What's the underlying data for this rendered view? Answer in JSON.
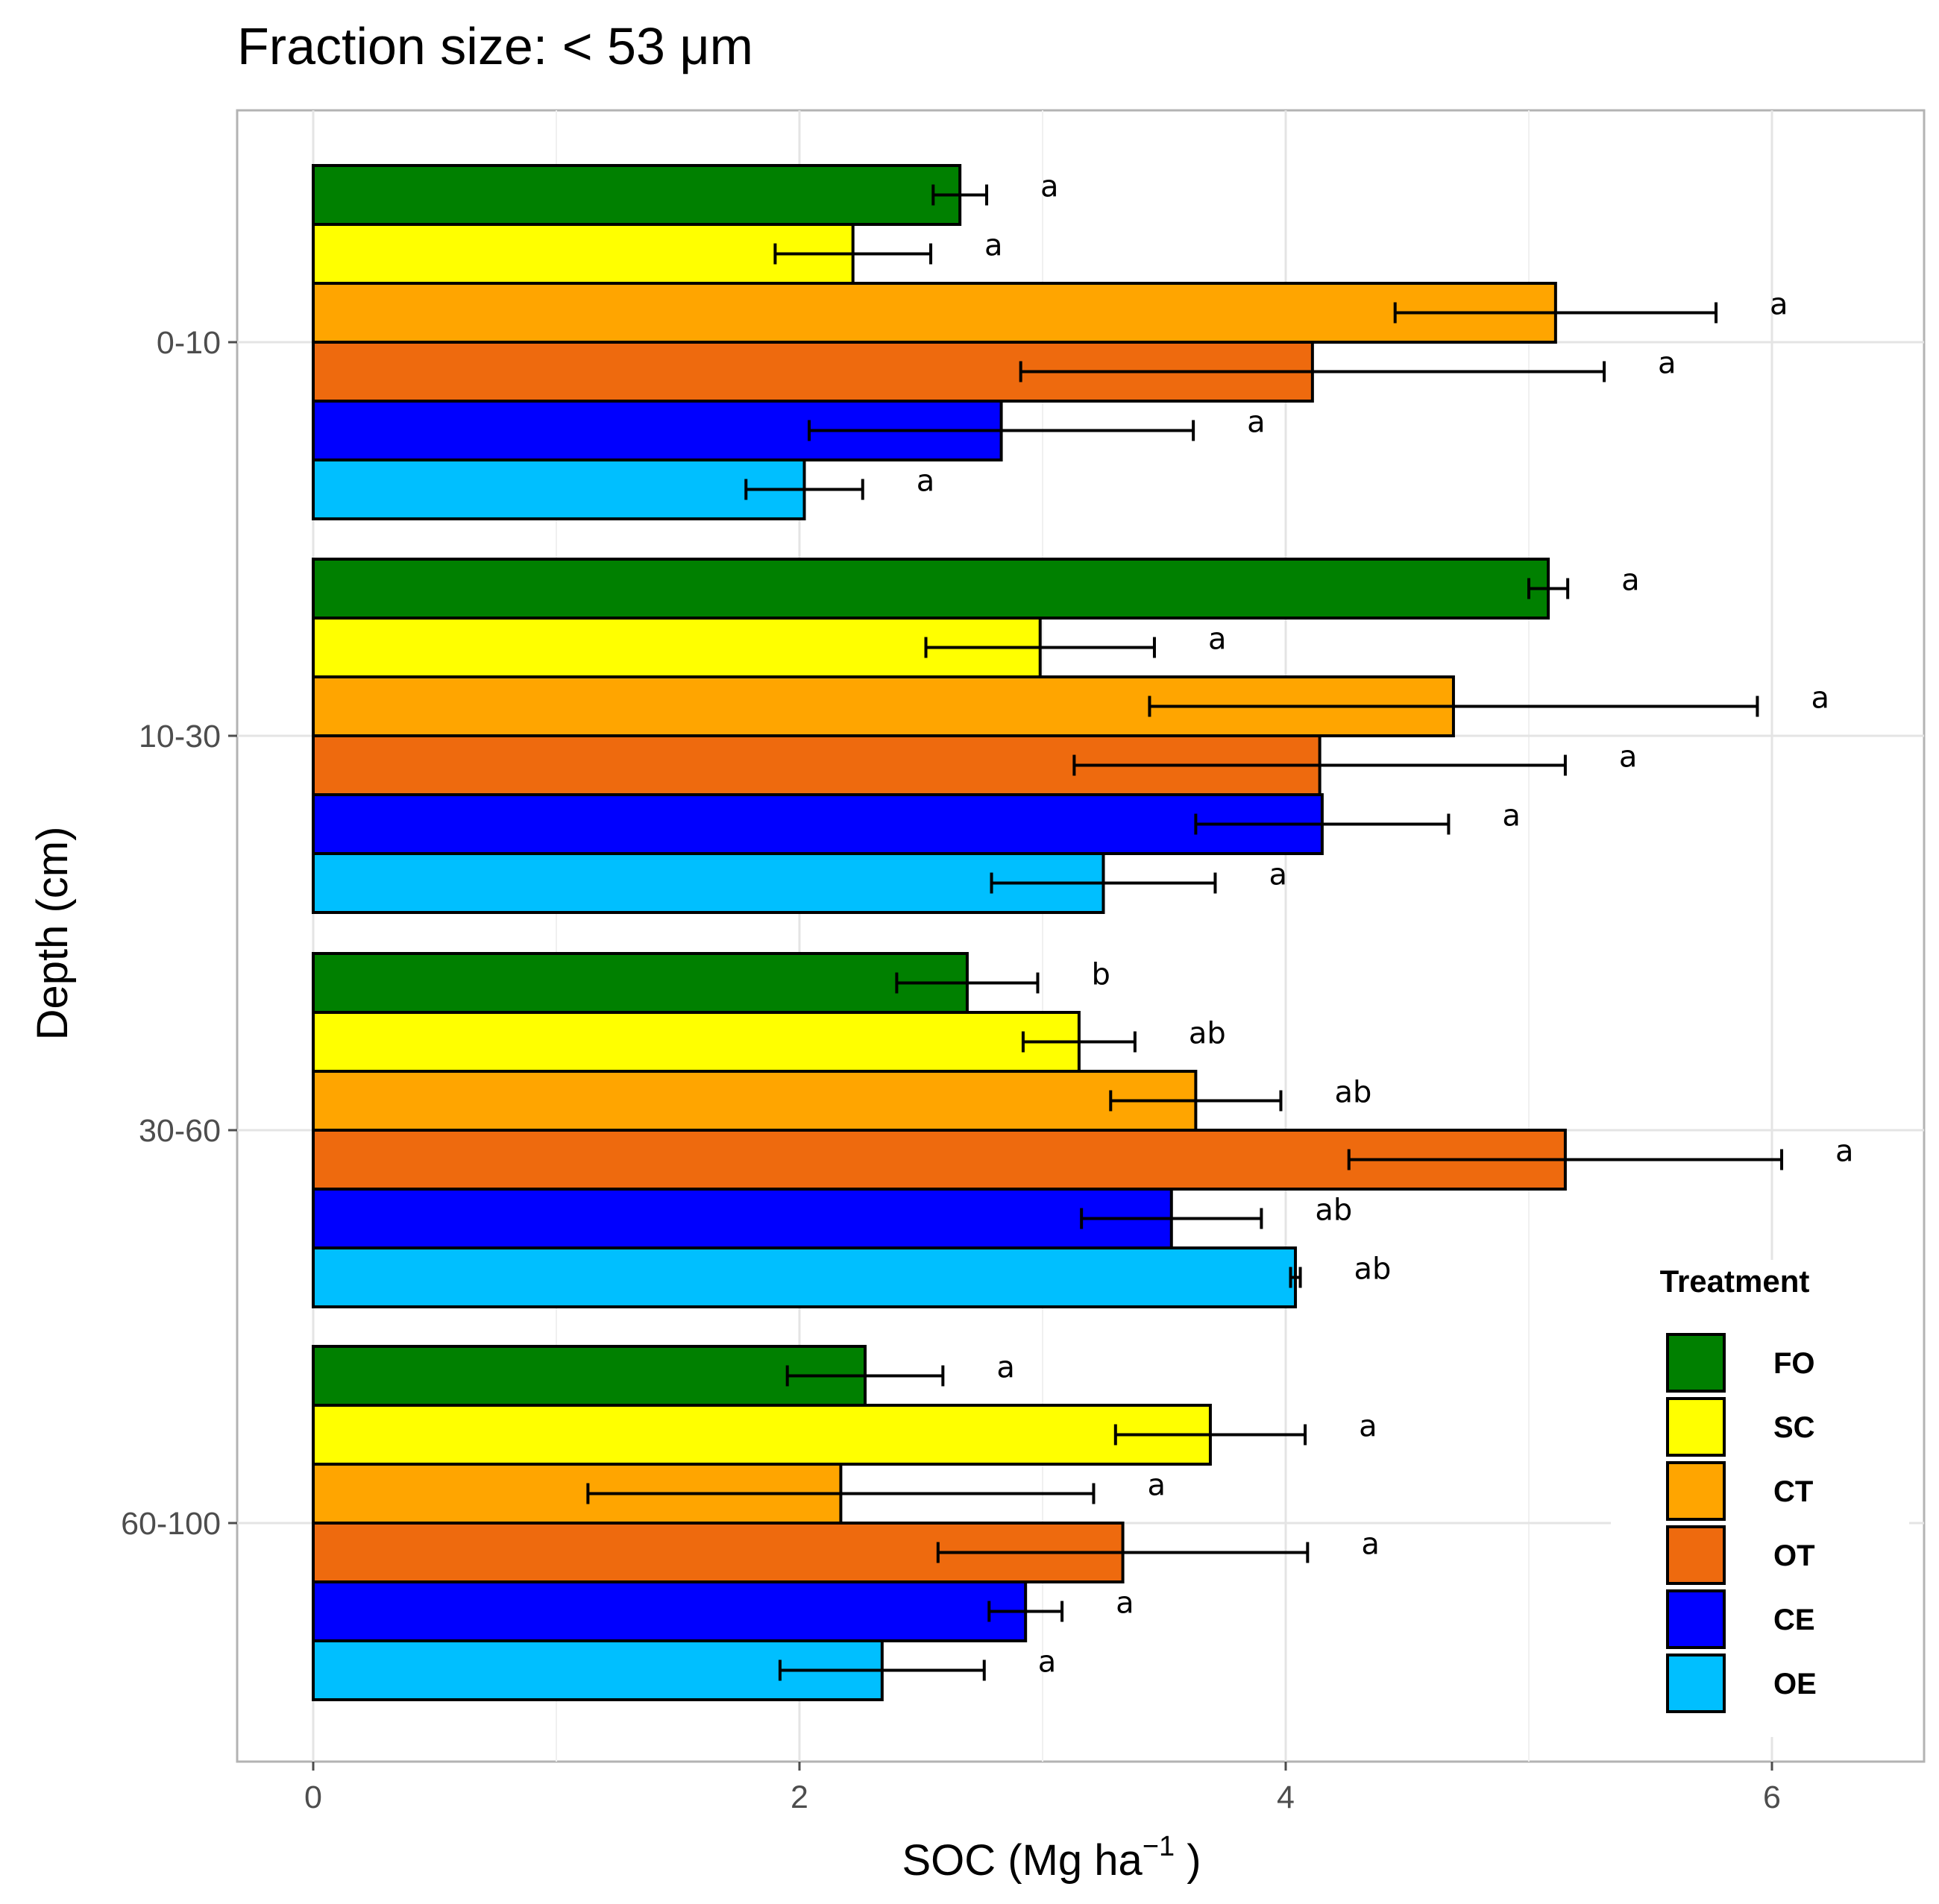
{
  "chart_data": {
    "type": "bar",
    "orientation": "horizontal",
    "title": "Fraction size: < 53 μm",
    "xlabel": "SOC (Mg ha",
    "xlabel_superscript": "−1",
    "xlabel_suffix": " )",
    "ylabel": "Depth (cm)",
    "xlim": [
      -0.3,
      6.5
    ],
    "xticks": [
      0,
      2,
      4,
      6
    ],
    "categories": [
      "0-10",
      "10-30",
      "30-60",
      "60-100"
    ],
    "legend": {
      "title": "Treatment",
      "position": "bottom-right"
    },
    "series": [
      {
        "name": "FO",
        "color": "#008000",
        "values": [
          2.66,
          5.08,
          2.69,
          2.27
        ],
        "errors": [
          0.11,
          0.08,
          0.29,
          0.32
        ],
        "letters": [
          "a",
          "a",
          "b",
          "a"
        ]
      },
      {
        "name": "SC",
        "color": "#FFFF00",
        "values": [
          2.22,
          2.99,
          3.15,
          3.69
        ],
        "errors": [
          0.32,
          0.47,
          0.23,
          0.39
        ],
        "letters": [
          "a",
          "a",
          "ab",
          "a"
        ]
      },
      {
        "name": "CT",
        "color": "#FFA500",
        "values": [
          5.11,
          4.69,
          3.63,
          2.17
        ],
        "errors": [
          0.66,
          1.25,
          0.35,
          1.04
        ],
        "letters": [
          "a",
          "a",
          "ab",
          "a"
        ]
      },
      {
        "name": "OT",
        "color": "#EE6A0E",
        "values": [
          4.11,
          4.14,
          5.15,
          3.33
        ],
        "errors": [
          1.2,
          1.01,
          0.89,
          0.76
        ],
        "letters": [
          "a",
          "a",
          "a",
          "a"
        ]
      },
      {
        "name": "CE",
        "color": "#0000FF",
        "values": [
          2.83,
          4.15,
          3.53,
          2.93
        ],
        "errors": [
          0.79,
          0.52,
          0.37,
          0.15
        ],
        "letters": [
          "a",
          "a",
          "ab",
          "a"
        ]
      },
      {
        "name": "OE",
        "color": "#00BFFF",
        "values": [
          2.02,
          3.25,
          4.04,
          2.34
        ],
        "errors": [
          0.24,
          0.46,
          0.02,
          0.42
        ],
        "letters": [
          "a",
          "a",
          "ab",
          "a"
        ]
      }
    ]
  }
}
